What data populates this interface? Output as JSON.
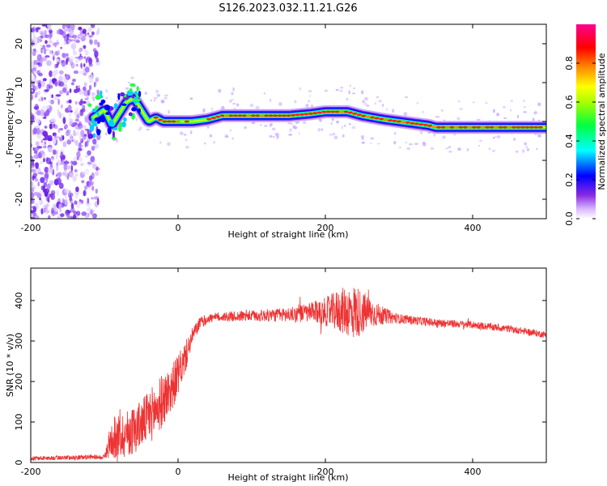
{
  "title": "S126.2023.032.11.21.G26",
  "chart_data": [
    {
      "type": "heatmap",
      "xlabel": "Height of straight line (km)",
      "ylabel": "Frequency (Hz)",
      "xlim": [
        -200,
        500
      ],
      "ylim": [
        -25,
        25
      ],
      "xticks": [
        -200,
        0,
        200,
        400
      ],
      "yticks": [
        -20,
        -10,
        0,
        10,
        20
      ],
      "colorbar": {
        "label": "Normalized spectral amplitude",
        "ticks": [
          0.0,
          0.2,
          0.4,
          0.6,
          0.8
        ],
        "range": [
          0,
          1
        ],
        "colormap": "rainbow (white-violet-blue-cyan-green-yellow-orange-red-magenta)"
      },
      "noise_region_x": [
        -200,
        -115
      ],
      "ridge": {
        "x": [
          -115,
          -100,
          -90,
          -80,
          -70,
          -60,
          -50,
          -40,
          -30,
          -20,
          0,
          20,
          40,
          50,
          60,
          80,
          100,
          150,
          180,
          200,
          230,
          250,
          280,
          300,
          320,
          340,
          350,
          400,
          450,
          500
        ],
        "y": [
          1,
          3,
          -1,
          2,
          5,
          6,
          3,
          0,
          1,
          0,
          0,
          0,
          0.5,
          1,
          1.5,
          1.5,
          1.5,
          1.5,
          2,
          2.5,
          2.5,
          1.5,
          0.5,
          0,
          -0.5,
          -1,
          -1.5,
          -1.5,
          -1.5,
          -1.5
        ]
      }
    },
    {
      "type": "line",
      "xlabel": "Height of straight line (km)",
      "ylabel": "SNR (10 * v/v)",
      "xlim": [
        -200,
        500
      ],
      "ylim": [
        0,
        480
      ],
      "xticks": [
        -200,
        0,
        200,
        400
      ],
      "yticks": [
        0,
        100,
        200,
        300,
        400
      ],
      "color": "#ee3333",
      "envelope": {
        "x": [
          -200,
          -100,
          -90,
          -70,
          -50,
          -30,
          -10,
          0,
          10,
          20,
          30,
          40,
          60,
          100,
          150,
          180,
          200,
          220,
          240,
          260,
          280,
          300,
          350,
          400,
          450,
          500
        ],
        "mean": [
          10,
          14,
          60,
          70,
          95,
          130,
          180,
          215,
          260,
          315,
          345,
          355,
          360,
          362,
          365,
          370,
          372,
          375,
          372,
          370,
          362,
          355,
          345,
          340,
          330,
          315
        ],
        "amplitude": [
          5,
          6,
          50,
          60,
          60,
          70,
          60,
          50,
          40,
          20,
          15,
          12,
          12,
          14,
          18,
          25,
          35,
          55,
          70,
          40,
          20,
          12,
          10,
          9,
          9,
          8
        ]
      }
    }
  ]
}
